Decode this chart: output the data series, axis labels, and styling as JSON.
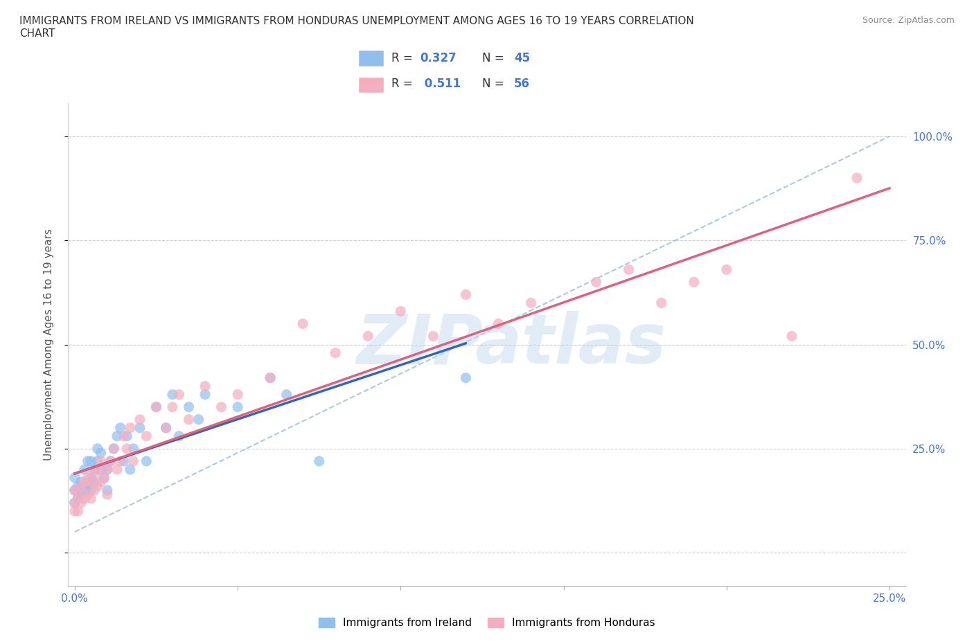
{
  "title": "IMMIGRANTS FROM IRELAND VS IMMIGRANTS FROM HONDURAS UNEMPLOYMENT AMONG AGES 16 TO 19 YEARS CORRELATION\nCHART",
  "source": "Source: ZipAtlas.com",
  "ylabel": "Unemployment Among Ages 16 to 19 years",
  "xlim": [
    -0.002,
    0.255
  ],
  "ylim": [
    -0.08,
    1.08
  ],
  "x_ticks": [
    0.0,
    0.05,
    0.1,
    0.15,
    0.2,
    0.25
  ],
  "x_tick_labels": [
    "0.0%",
    "",
    "",
    "",
    "",
    "25.0%"
  ],
  "y_ticks": [
    0.0,
    0.25,
    0.5,
    0.75,
    1.0
  ],
  "y_tick_labels": [
    "",
    "25.0%",
    "50.0%",
    "75.0%",
    "100.0%"
  ],
  "ireland_color": "#90bfef",
  "honduras_color": "#f5adc0",
  "ireland_line_color": "#3366bb",
  "honduras_line_color": "#e06080",
  "dashed_line_color": "#99bbdd",
  "R_ireland": 0.327,
  "N_ireland": 45,
  "R_honduras": 0.511,
  "N_honduras": 56,
  "legend_ireland": "Immigrants from Ireland",
  "legend_honduras": "Immigrants from Honduras",
  "ireland_x": [
    0.0,
    0.0,
    0.0,
    0.001,
    0.001,
    0.002,
    0.002,
    0.003,
    0.003,
    0.004,
    0.004,
    0.005,
    0.005,
    0.005,
    0.006,
    0.006,
    0.007,
    0.007,
    0.008,
    0.008,
    0.009,
    0.01,
    0.01,
    0.011,
    0.012,
    0.013,
    0.014,
    0.015,
    0.016,
    0.017,
    0.018,
    0.02,
    0.022,
    0.025,
    0.028,
    0.03,
    0.032,
    0.035,
    0.038,
    0.04,
    0.05,
    0.06,
    0.065,
    0.075,
    0.12
  ],
  "ireland_y": [
    0.15,
    0.12,
    0.18,
    0.13,
    0.16,
    0.14,
    0.17,
    0.15,
    0.2,
    0.16,
    0.22,
    0.15,
    0.18,
    0.22,
    0.17,
    0.2,
    0.25,
    0.22,
    0.2,
    0.24,
    0.18,
    0.15,
    0.2,
    0.22,
    0.25,
    0.28,
    0.3,
    0.22,
    0.28,
    0.2,
    0.25,
    0.3,
    0.22,
    0.35,
    0.3,
    0.38,
    0.28,
    0.35,
    0.32,
    0.38,
    0.35,
    0.42,
    0.38,
    0.22,
    0.42
  ],
  "honduras_x": [
    0.0,
    0.0,
    0.0,
    0.001,
    0.001,
    0.002,
    0.002,
    0.003,
    0.003,
    0.004,
    0.004,
    0.005,
    0.005,
    0.006,
    0.006,
    0.007,
    0.007,
    0.008,
    0.008,
    0.009,
    0.01,
    0.01,
    0.011,
    0.012,
    0.013,
    0.014,
    0.015,
    0.016,
    0.017,
    0.018,
    0.02,
    0.022,
    0.025,
    0.028,
    0.03,
    0.032,
    0.035,
    0.04,
    0.045,
    0.05,
    0.06,
    0.07,
    0.08,
    0.09,
    0.1,
    0.11,
    0.12,
    0.13,
    0.14,
    0.16,
    0.17,
    0.18,
    0.19,
    0.2,
    0.22,
    0.24
  ],
  "honduras_y": [
    0.1,
    0.15,
    0.12,
    0.1,
    0.14,
    0.12,
    0.16,
    0.13,
    0.17,
    0.14,
    0.18,
    0.13,
    0.17,
    0.15,
    0.19,
    0.16,
    0.2,
    0.17,
    0.22,
    0.18,
    0.14,
    0.2,
    0.22,
    0.25,
    0.2,
    0.22,
    0.28,
    0.25,
    0.3,
    0.22,
    0.32,
    0.28,
    0.35,
    0.3,
    0.35,
    0.38,
    0.32,
    0.4,
    0.35,
    0.38,
    0.42,
    0.55,
    0.48,
    0.52,
    0.58,
    0.52,
    0.62,
    0.55,
    0.6,
    0.65,
    0.68,
    0.6,
    0.65,
    0.68,
    0.52,
    0.9
  ]
}
